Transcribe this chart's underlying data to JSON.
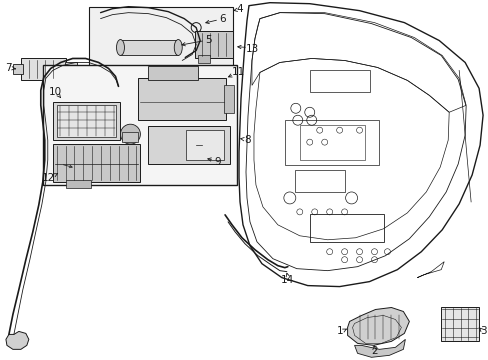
{
  "bg_color": "#ffffff",
  "fig_width": 4.89,
  "fig_height": 3.6,
  "dpi": 100,
  "line_color": "#1a1a1a",
  "label_color": "#1a1a1a",
  "label_fontsize": 7.5
}
